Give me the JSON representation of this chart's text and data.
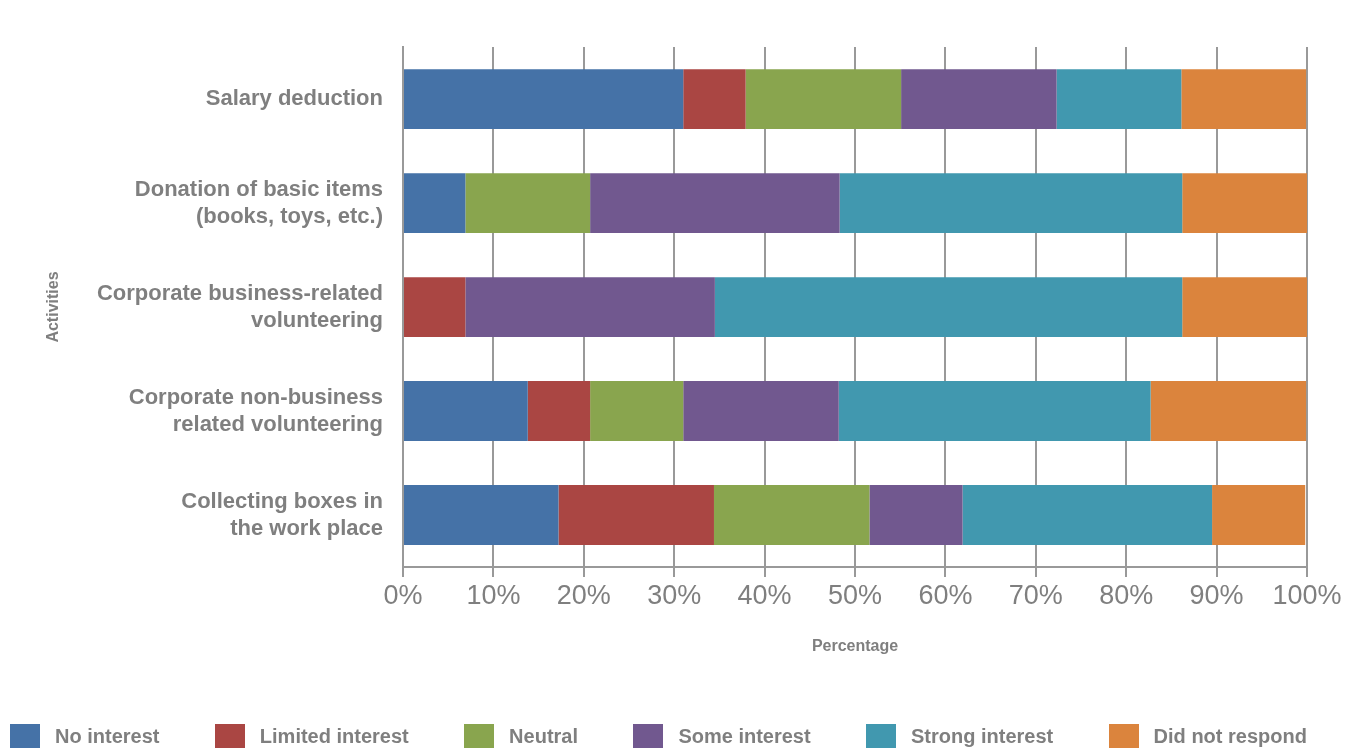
{
  "chart_data": {
    "type": "bar",
    "orientation": "horizontal",
    "stacked": true,
    "categories": [
      "Salary deduction",
      "Donation of basic items\n(books, toys, etc.)",
      "Corporate business-related\nvolunteering",
      "Corporate non-business\nrelated volunteering",
      "Collecting boxes in\nthe work place"
    ],
    "series": [
      {
        "name": "No interest",
        "color": "#4572a7",
        "values": [
          31.0,
          6.9,
          0,
          13.8,
          17.2
        ]
      },
      {
        "name": "Limited interest",
        "color": "#aa4643",
        "values": [
          6.9,
          0,
          6.9,
          6.9,
          17.2
        ]
      },
      {
        "name": "Neutral",
        "color": "#89a54e",
        "values": [
          17.2,
          13.8,
          0,
          10.3,
          17.2
        ]
      },
      {
        "name": "Some interest",
        "color": "#71588f",
        "values": [
          17.2,
          27.6,
          27.6,
          17.2,
          10.3
        ]
      },
      {
        "name": "Strong interest",
        "color": "#4198af",
        "values": [
          13.8,
          37.9,
          51.7,
          34.5,
          27.6
        ]
      },
      {
        "name": "Did not respond",
        "color": "#db843d",
        "values": [
          13.8,
          13.8,
          13.8,
          17.2,
          10.3
        ]
      }
    ],
    "xlim": [
      0,
      100
    ],
    "xticks": [
      {
        "value": 0,
        "label": "0%"
      },
      {
        "value": 10,
        "label": "10%"
      },
      {
        "value": 20,
        "label": "20%"
      },
      {
        "value": 30,
        "label": "30%"
      },
      {
        "value": 40,
        "label": "40%"
      },
      {
        "value": 50,
        "label": "50%"
      },
      {
        "value": 60,
        "label": "60%"
      },
      {
        "value": 70,
        "label": "70%"
      },
      {
        "value": 80,
        "label": "80%"
      },
      {
        "value": 90,
        "label": "90%"
      },
      {
        "value": 100,
        "label": "100%"
      }
    ],
    "xlabel": "Percentage",
    "ylabel": "Activities",
    "grid": "x",
    "legend": "bottom"
  }
}
